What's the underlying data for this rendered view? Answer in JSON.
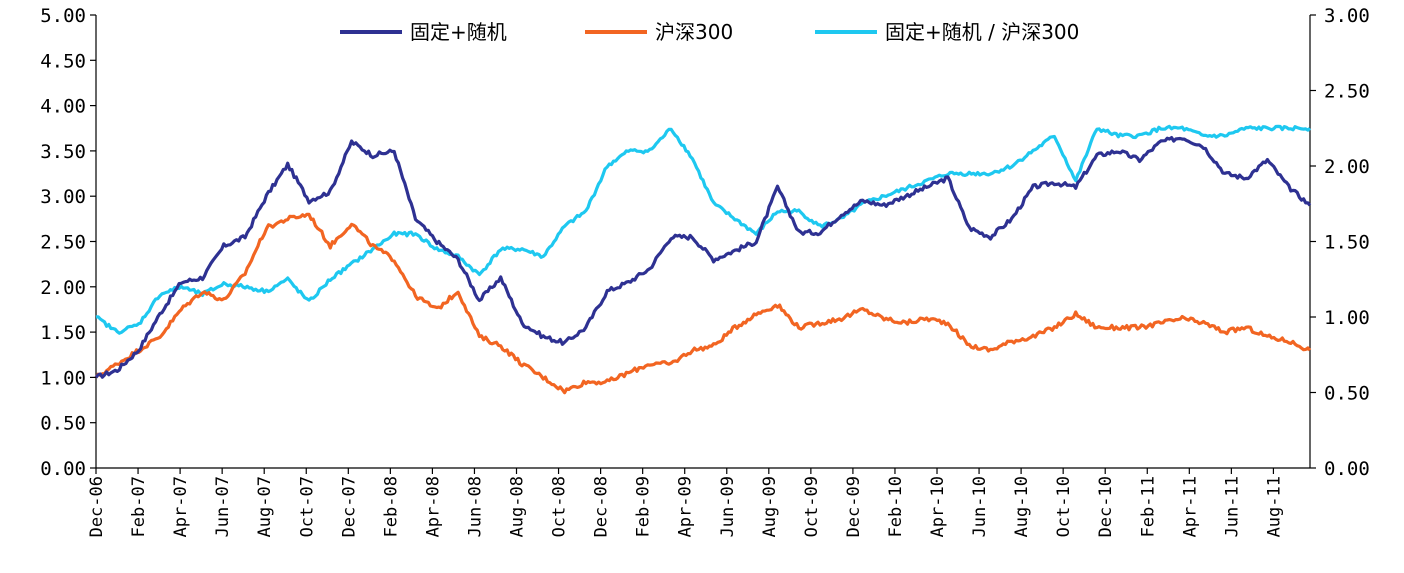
{
  "chart_data": {
    "type": "line",
    "title": "",
    "xlabel": "",
    "ylabel": "",
    "ylim": [
      0,
      5
    ],
    "y_ticks": [
      "0.00",
      "0.50",
      "1.00",
      "1.50",
      "2.00",
      "2.50",
      "3.00",
      "3.50",
      "4.00",
      "4.50",
      "5.00"
    ],
    "y2lim": [
      0,
      3
    ],
    "y2_ticks": [
      "0.00",
      "0.50",
      "1.00",
      "1.50",
      "2.00",
      "2.50",
      "3.00"
    ],
    "x_tick_labels": [
      "Dec-06",
      "Feb-07",
      "Apr-07",
      "Jun-07",
      "Aug-07",
      "Oct-07",
      "Dec-07",
      "Feb-08",
      "Apr-08",
      "Jun-08",
      "Aug-08",
      "Oct-08",
      "Dec-08",
      "Feb-09",
      "Apr-09",
      "Jun-09",
      "Aug-09",
      "Oct-09",
      "Dec-09",
      "Feb-10",
      "Apr-10",
      "Jun-10",
      "Aug-10",
      "Oct-10",
      "Dec-10",
      "Feb-11",
      "Apr-11",
      "Jun-11",
      "Aug-11"
    ],
    "grid": false,
    "legend_position": "top-center",
    "x": [
      "Dec-06",
      "Jan-07",
      "Feb-07",
      "Mar-07",
      "Apr-07",
      "May-07",
      "Jun-07",
      "Jul-07",
      "Aug-07",
      "Sep-07",
      "Oct-07",
      "Nov-07",
      "Dec-07",
      "Jan-08",
      "Feb-08",
      "Mar-08",
      "Apr-08",
      "May-08",
      "Jun-08",
      "Jul-08",
      "Aug-08",
      "Sep-08",
      "Oct-08",
      "Nov-08",
      "Dec-08",
      "Jan-09",
      "Feb-09",
      "Mar-09",
      "Apr-09",
      "May-09",
      "Jun-09",
      "Jul-09",
      "Aug-09",
      "Sep-09",
      "Oct-09",
      "Nov-09",
      "Dec-09",
      "Jan-10",
      "Feb-10",
      "Mar-10",
      "Apr-10",
      "May-10",
      "Jun-10",
      "Jul-10",
      "Aug-10",
      "Sep-10",
      "Oct-10",
      "Nov-10",
      "Dec-10",
      "Jan-11",
      "Feb-11",
      "Mar-11",
      "Apr-11",
      "May-11",
      "Jun-11",
      "Jul-11",
      "Aug-11",
      "Sep-11"
    ],
    "series": [
      {
        "name": "固定+随机",
        "axis": "left",
        "color": "#2E3192",
        "values": [
          1.0,
          1.08,
          1.3,
          1.7,
          2.05,
          2.1,
          2.45,
          2.55,
          3.0,
          3.35,
          2.95,
          3.05,
          3.6,
          3.45,
          3.5,
          2.75,
          2.5,
          2.3,
          1.85,
          2.1,
          1.6,
          1.45,
          1.38,
          1.55,
          1.95,
          2.05,
          2.2,
          2.55,
          2.55,
          2.3,
          2.4,
          2.5,
          3.1,
          2.6,
          2.6,
          2.8,
          2.95,
          2.9,
          3.0,
          3.1,
          3.2,
          2.65,
          2.55,
          2.75,
          3.1,
          3.15,
          3.1,
          3.45,
          3.5,
          3.4,
          3.6,
          3.65,
          3.55,
          3.25,
          3.2,
          3.4,
          3.1,
          2.9
        ]
      },
      {
        "name": "沪深300",
        "axis": "left",
        "color": "#F26522",
        "values": [
          1.0,
          1.15,
          1.3,
          1.45,
          1.75,
          1.95,
          1.85,
          2.15,
          2.65,
          2.75,
          2.8,
          2.45,
          2.7,
          2.45,
          2.3,
          1.9,
          1.75,
          1.95,
          1.45,
          1.35,
          1.15,
          1.0,
          0.85,
          0.95,
          0.95,
          1.05,
          1.15,
          1.15,
          1.3,
          1.35,
          1.55,
          1.7,
          1.8,
          1.55,
          1.6,
          1.65,
          1.75,
          1.65,
          1.6,
          1.65,
          1.6,
          1.35,
          1.3,
          1.4,
          1.45,
          1.55,
          1.7,
          1.55,
          1.55,
          1.55,
          1.6,
          1.65,
          1.6,
          1.5,
          1.55,
          1.45,
          1.4,
          1.3
        ]
      },
      {
        "name": "固定+随机 / 沪深300",
        "axis": "right",
        "color": "#1EC8F0",
        "values": [
          1.0,
          0.9,
          0.95,
          1.15,
          1.2,
          1.15,
          1.22,
          1.2,
          1.17,
          1.25,
          1.1,
          1.25,
          1.35,
          1.45,
          1.55,
          1.55,
          1.45,
          1.4,
          1.28,
          1.45,
          1.45,
          1.4,
          1.6,
          1.7,
          2.0,
          2.1,
          2.1,
          2.25,
          2.05,
          1.75,
          1.65,
          1.55,
          1.7,
          1.7,
          1.6,
          1.65,
          1.75,
          1.8,
          1.85,
          1.9,
          1.95,
          1.95,
          1.95,
          2.0,
          2.1,
          2.2,
          1.9,
          2.25,
          2.2,
          2.2,
          2.25,
          2.25,
          2.2,
          2.2,
          2.25,
          2.25,
          2.25,
          2.25
        ]
      }
    ]
  }
}
